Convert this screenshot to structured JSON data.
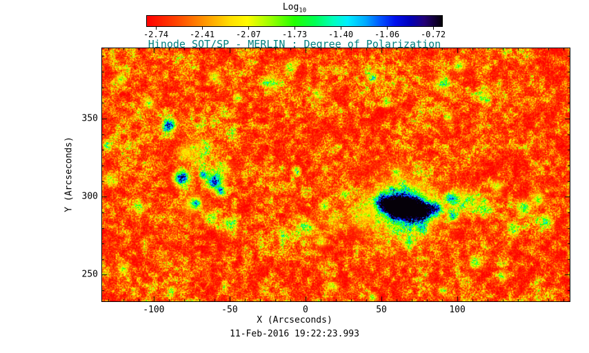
{
  "chart_data": {
    "type": "heatmap",
    "title": "Hinode SOT/SP - MERLIN : Degree of Polarization",
    "title_color": "#008080",
    "xlabel": "X (Arcseconds)",
    "ylabel": "Y (Arcseconds)",
    "caption": "11-Feb-2016 19:22:23.993",
    "colorbar": {
      "label": "Log",
      "label_sub": "10",
      "tick_labels": [
        "-2.74",
        "-2.41",
        "-2.07",
        "-1.73",
        "-1.40",
        "-1.06",
        "-0.72"
      ],
      "min": -2.74,
      "max": -0.72,
      "orientation": "horizontal"
    },
    "axes": {
      "xlim": [
        -134,
        174
      ],
      "ylim": [
        233,
        395
      ],
      "xticks": [
        -100,
        -50,
        0,
        50,
        100
      ],
      "xtick_labels": [
        "-100",
        "-50",
        "0",
        "50",
        "100"
      ],
      "yticks": [
        250,
        300,
        350
      ],
      "ytick_labels": [
        "250",
        "300",
        "350"
      ],
      "minor_tick_step": 10
    },
    "colormap": [
      [
        0.0,
        "#ff0000"
      ],
      [
        0.1,
        "#ff4400"
      ],
      [
        0.2,
        "#ff9900"
      ],
      [
        0.28,
        "#ffdd00"
      ],
      [
        0.34,
        "#fffb00"
      ],
      [
        0.42,
        "#99ff00"
      ],
      [
        0.5,
        "#22ff00"
      ],
      [
        0.57,
        "#00ff55"
      ],
      [
        0.63,
        "#00ffbb"
      ],
      [
        0.68,
        "#00eeff"
      ],
      [
        0.74,
        "#00aaff"
      ],
      [
        0.79,
        "#0055ff"
      ],
      [
        0.84,
        "#0011ee"
      ],
      [
        0.89,
        "#0000bb"
      ],
      [
        0.94,
        "#220077"
      ],
      [
        1.0,
        "#050008"
      ]
    ],
    "heatmap": {
      "content_summary": "Quiet-Sun background near log10 P ~ -2.7 (red/orange speckle) with magnetic network patches (green/cyan) and strong-polarization plage and pores (blue to black blobs); main active region centered near x=65, y=293 arcsec, secondary pores near x=-82 y=312, x=-60 y=310 and x=-90 y=346.",
      "noise": {
        "seed": 20160211,
        "octaves": [
          [
            0.85,
            0.45
          ],
          [
            0.13,
            0.35
          ],
          [
            0.035,
            0.2
          ]
        ],
        "floor": 0.15,
        "gamma": 2.2,
        "scale": 0.75
      },
      "features": [
        [
          50,
          297,
          5,
          0.55
        ],
        [
          58,
          294,
          7,
          0.9
        ],
        [
          68,
          293,
          8,
          0.9
        ],
        [
          78,
          291,
          6,
          0.75
        ],
        [
          86,
          293,
          4,
          0.6
        ],
        [
          96,
          299,
          4,
          0.6
        ],
        [
          97,
          288,
          3.5,
          0.5
        ],
        [
          65,
          293,
          20,
          0.3
        ],
        [
          65,
          293,
          12,
          0.25
        ],
        [
          38,
          288,
          9,
          0.22
        ],
        [
          18,
          284,
          6,
          0.2
        ],
        [
          105,
          297,
          7,
          0.28
        ],
        [
          -82,
          312,
          4.5,
          0.85
        ],
        [
          -60,
          310,
          5,
          0.8
        ],
        [
          -67,
          314,
          3,
          0.5
        ],
        [
          -56,
          304,
          3,
          0.55
        ],
        [
          -72,
          296,
          3,
          0.45
        ],
        [
          -90,
          346,
          4,
          0.75
        ],
        [
          -75,
          295,
          6,
          0.28
        ],
        [
          -62,
          287,
          5,
          0.28
        ],
        [
          -50,
          282,
          5,
          0.26
        ],
        [
          -70,
          330,
          8,
          0.2
        ],
        [
          -55,
          318,
          6,
          0.2
        ],
        [
          -80,
          328,
          5,
          0.26
        ],
        [
          0,
          280,
          6,
          0.28
        ],
        [
          10,
          272,
          4,
          0.26
        ],
        [
          -15,
          276,
          4,
          0.24
        ],
        [
          12,
          294,
          3,
          0.32
        ],
        [
          26,
          302,
          3,
          0.3
        ],
        [
          -6,
          316,
          2.5,
          0.38
        ],
        [
          60,
          316,
          3,
          0.3
        ],
        [
          76,
          280,
          3,
          0.33
        ],
        [
          67,
          271,
          3,
          0.3
        ],
        [
          -22,
          373,
          5,
          0.3
        ],
        [
          -10,
          384,
          4,
          0.3
        ],
        [
          8,
          366,
          4,
          0.28
        ],
        [
          44,
          377,
          4,
          0.3
        ],
        [
          53,
          360,
          3,
          0.25
        ],
        [
          -60,
          377,
          4,
          0.3
        ],
        [
          -45,
          364,
          3,
          0.28
        ],
        [
          90,
          373,
          5,
          0.32
        ],
        [
          101,
          384,
          4,
          0.3
        ],
        [
          117,
          364,
          4,
          0.3
        ],
        [
          94,
          351,
          3,
          0.28
        ],
        [
          117,
          293,
          5,
          0.33
        ],
        [
          126,
          307,
          4,
          0.3
        ],
        [
          144,
          293,
          5,
          0.38
        ],
        [
          153,
          299,
          4,
          0.34
        ],
        [
          158,
          285,
          4,
          0.34
        ],
        [
          137,
          280,
          4,
          0.3
        ],
        [
          112,
          258,
          4,
          0.3
        ],
        [
          130,
          249,
          3,
          0.3
        ],
        [
          90,
          240,
          3,
          0.28
        ],
        [
          44,
          236,
          3,
          0.28
        ],
        [
          17,
          243,
          3,
          0.25
        ],
        [
          -88,
          240,
          3,
          0.28
        ],
        [
          -120,
          254,
          4,
          0.3
        ],
        [
          -110,
          293,
          4,
          0.3
        ],
        [
          -129,
          311,
          4,
          0.32
        ],
        [
          -131,
          333,
          3,
          0.3
        ],
        [
          -104,
          360,
          4,
          0.3
        ],
        [
          -122,
          375,
          4,
          0.3
        ]
      ]
    }
  }
}
